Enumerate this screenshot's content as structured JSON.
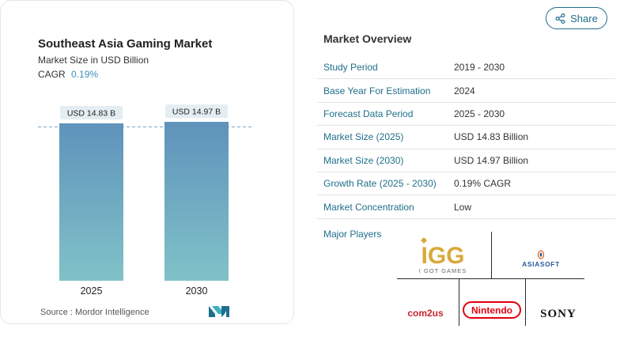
{
  "chart_panel": {
    "title": "Southeast Asia Gaming Market",
    "subtitle": "Market Size in USD Billion",
    "cagr_label": "CAGR",
    "cagr_value": "0.19%",
    "source": "Source :  Mordor Intelligence"
  },
  "chart_data": {
    "type": "bar",
    "categories": [
      "2025",
      "2030"
    ],
    "values": [
      14.83,
      14.97
    ],
    "data_labels": [
      "USD 14.83 B",
      "USD 14.97 B"
    ],
    "title": "Southeast Asia Gaming Market",
    "ylabel": "Market Size in USD Billion",
    "ylim": [
      0,
      15.2
    ],
    "colors": {
      "bar_top": "#5f93bb",
      "bar_bottom": "#80c2c8",
      "label_bg": "#e4edf2",
      "reference_line": "#7aa6c2"
    }
  },
  "share": {
    "label": "Share",
    "color": "#1f6f8b"
  },
  "overview": {
    "title": "Market Overview",
    "rows": [
      {
        "key": "Study Period",
        "value": "2019 - 2030"
      },
      {
        "key": "Base Year For Estimation",
        "value": "2024"
      },
      {
        "key": "Forecast Data Period",
        "value": "2025 - 2030"
      },
      {
        "key": "Market Size (2025)",
        "value": "USD 14.83 Billion"
      },
      {
        "key": "Market Size (2030)",
        "value": "USD 14.97 Billion"
      },
      {
        "key": "Growth Rate (2025 - 2030)",
        "value": "0.19% CAGR"
      },
      {
        "key": "Market Concentration",
        "value": "Low"
      }
    ],
    "major_players_label": "Major Players"
  },
  "players": {
    "igg_main": "IGG",
    "igg_sub": "I GOT GAMES",
    "asiasoft": "ASIASOFT",
    "com2us": "com2us",
    "nintendo": "Nintendo",
    "sony": "SONY"
  }
}
